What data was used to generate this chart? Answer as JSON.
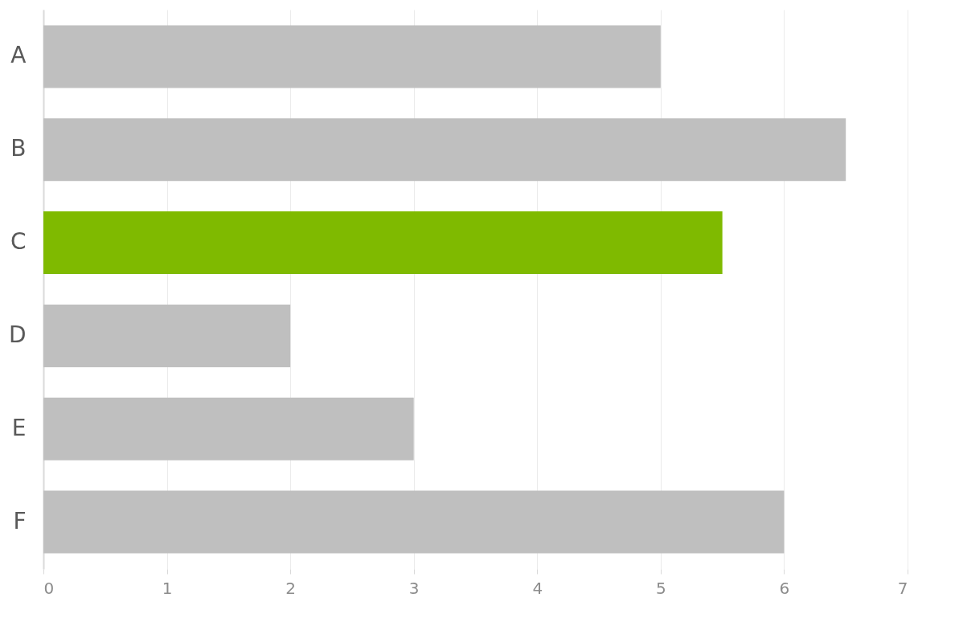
{
  "chart_data": {
    "type": "bar",
    "orientation": "horizontal",
    "categories": [
      "A",
      "B",
      "C",
      "D",
      "E",
      "F"
    ],
    "values": [
      5,
      6.5,
      5.5,
      2,
      3,
      6
    ],
    "colors": [
      "#bfbfbf",
      "#bfbfbf",
      "#7fba00",
      "#bfbfbf",
      "#bfbfbf",
      "#bfbfbf"
    ],
    "xlim": [
      0,
      7
    ],
    "xticks": [
      0,
      1,
      2,
      3,
      4,
      5,
      6,
      7
    ],
    "grid": "x"
  }
}
